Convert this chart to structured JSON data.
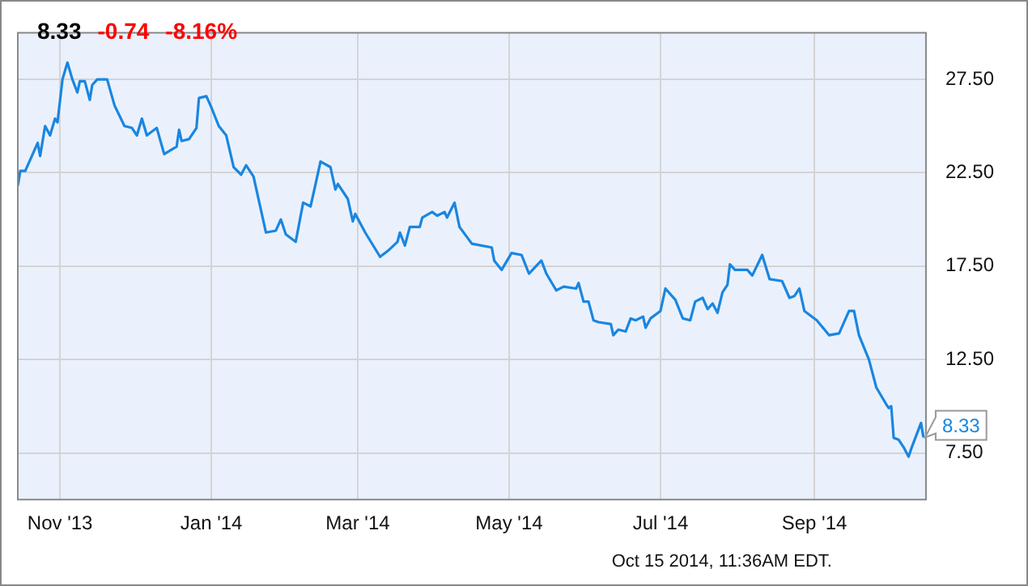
{
  "chart_data": {
    "type": "line",
    "x": [
      "2013-10-15",
      "2013-10-16",
      "2013-10-18",
      "2013-10-23",
      "2013-10-24",
      "2013-10-26",
      "2013-10-28",
      "2013-10-30",
      "2013-10-31",
      "2013-11-02",
      "2013-11-04",
      "2013-11-06",
      "2013-11-08",
      "2013-11-09",
      "2013-11-11",
      "2013-11-13",
      "2013-11-14",
      "2013-11-16",
      "2013-11-20",
      "2013-11-23",
      "2013-11-27",
      "2013-11-30",
      "2013-12-02",
      "2013-12-04",
      "2013-12-06",
      "2013-12-10",
      "2013-12-13",
      "2013-12-18",
      "2013-12-19",
      "2013-12-20",
      "2013-12-23",
      "2013-12-26",
      "2013-12-27",
      "2013-12-30",
      "2014-01-01",
      "2014-01-04",
      "2014-01-07",
      "2014-01-10",
      "2014-01-13",
      "2014-01-15",
      "2014-01-18",
      "2014-01-23",
      "2014-01-27",
      "2014-01-29",
      "2014-01-31",
      "2014-02-04",
      "2014-02-07",
      "2014-02-10",
      "2014-02-12",
      "2014-02-14",
      "2014-02-18",
      "2014-02-20",
      "2014-02-21",
      "2014-02-25",
      "2014-02-27",
      "2014-02-28",
      "2014-03-04",
      "2014-03-10",
      "2014-03-13",
      "2014-03-17",
      "2014-03-18",
      "2014-03-20",
      "2014-03-22",
      "2014-03-26",
      "2014-03-27",
      "2014-03-31",
      "2014-04-02",
      "2014-04-05",
      "2014-04-06",
      "2014-04-09",
      "2014-04-11",
      "2014-04-16",
      "2014-04-24",
      "2014-04-25",
      "2014-04-28",
      "2014-05-02",
      "2014-05-06",
      "2014-05-09",
      "2014-05-14",
      "2014-05-16",
      "2014-05-20",
      "2014-05-23",
      "2014-05-28",
      "2014-05-29",
      "2014-05-31",
      "2014-06-02",
      "2014-06-04",
      "2014-06-06",
      "2014-06-11",
      "2014-06-12",
      "2014-06-14",
      "2014-06-17",
      "2014-06-19",
      "2014-06-21",
      "2014-06-24",
      "2014-06-25",
      "2014-06-27",
      "2014-07-01",
      "2014-07-03",
      "2014-07-07",
      "2014-07-10",
      "2014-07-13",
      "2014-07-15",
      "2014-07-18",
      "2014-07-20",
      "2014-07-22",
      "2014-07-24",
      "2014-07-26",
      "2014-07-28",
      "2014-07-29",
      "2014-07-31",
      "2014-08-05",
      "2014-08-07",
      "2014-08-11",
      "2014-08-14",
      "2014-08-19",
      "2014-08-22",
      "2014-08-24",
      "2014-08-26",
      "2014-08-28",
      "2014-09-02",
      "2014-09-07",
      "2014-09-11",
      "2014-09-15",
      "2014-09-17",
      "2014-09-19",
      "2014-09-23",
      "2014-09-26",
      "2014-09-30",
      "2014-10-01",
      "2014-10-02",
      "2014-10-03",
      "2014-10-05",
      "2014-10-07",
      "2014-10-09",
      "2014-10-10",
      "2014-10-14",
      "2014-10-15"
    ],
    "series": [
      {
        "color": "#1a86e0",
        "values": [
          21.8,
          22.6,
          22.6,
          24.1,
          23.4,
          25.0,
          24.5,
          25.4,
          25.2,
          27.5,
          28.4,
          27.5,
          26.8,
          27.4,
          27.4,
          26.4,
          27.2,
          27.5,
          27.5,
          26.1,
          25.0,
          24.9,
          24.5,
          25.4,
          24.5,
          24.9,
          23.5,
          23.9,
          24.8,
          24.2,
          24.3,
          24.9,
          26.5,
          26.6,
          26.0,
          25.0,
          24.5,
          22.8,
          22.4,
          22.9,
          22.3,
          19.3,
          19.4,
          20.0,
          19.2,
          18.8,
          20.9,
          20.7,
          21.9,
          23.1,
          22.8,
          21.6,
          21.9,
          21.1,
          19.9,
          20.3,
          19.3,
          18.0,
          18.3,
          18.8,
          19.3,
          18.6,
          19.6,
          19.6,
          20.1,
          20.4,
          20.2,
          20.4,
          20.1,
          20.9,
          19.6,
          18.7,
          18.5,
          17.8,
          17.3,
          18.2,
          18.1,
          17.1,
          17.8,
          17.1,
          16.2,
          16.4,
          16.3,
          16.6,
          15.6,
          15.6,
          14.6,
          14.5,
          14.4,
          13.8,
          14.1,
          14.0,
          14.7,
          14.6,
          14.8,
          14.2,
          14.7,
          15.1,
          16.3,
          15.7,
          14.7,
          14.6,
          15.6,
          15.8,
          15.2,
          15.5,
          15.0,
          16.1,
          16.5,
          17.6,
          17.3,
          17.3,
          17.0,
          18.1,
          16.8,
          16.7,
          15.8,
          15.9,
          16.3,
          15.1,
          14.6,
          13.8,
          13.9,
          15.1,
          15.1,
          13.8,
          12.5,
          11.0,
          10.1,
          9.9,
          10.0,
          8.3,
          8.2,
          7.8,
          7.3,
          7.7,
          9.1,
          8.33
        ]
      }
    ],
    "xlim": [
      "2013-10-15",
      "2014-10-16"
    ],
    "xticks": [
      {
        "value": "2013-11-01",
        "label": "Nov '13"
      },
      {
        "value": "2014-01-01",
        "label": "Jan '14"
      },
      {
        "value": "2014-03-01",
        "label": "Mar '14"
      },
      {
        "value": "2014-05-01",
        "label": "May '14"
      },
      {
        "value": "2014-07-01",
        "label": "Jul '14"
      },
      {
        "value": "2014-09-01",
        "label": "Sep '14"
      }
    ],
    "ylim": [
      5,
      30
    ],
    "yticks": [
      {
        "value": 7.5,
        "label": "7.50"
      },
      {
        "value": 12.5,
        "label": "12.50"
      },
      {
        "value": 17.5,
        "label": "17.50"
      },
      {
        "value": 22.5,
        "label": "22.50"
      },
      {
        "value": 27.5,
        "label": "27.50"
      }
    ],
    "grid": true,
    "annotations": [
      "8.33",
      "-0.74",
      "-8.16%",
      {
        "text": "8.33",
        "x": "2014-10-15",
        "y": 8.33
      },
      "Oct 15 2014, 11:36AM EDT."
    ]
  }
}
